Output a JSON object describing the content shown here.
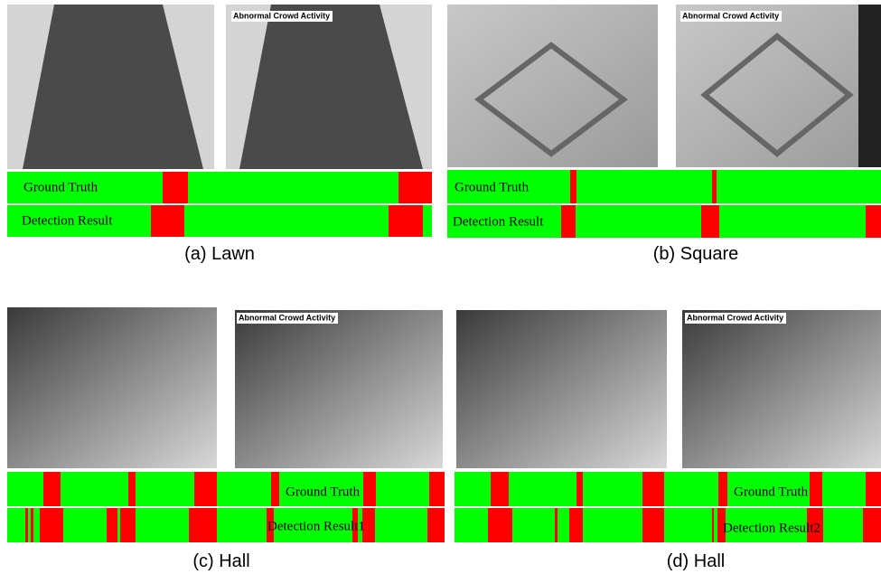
{
  "panels": [
    {
      "caption": "(a) Lawn",
      "overlay": "Abnormal Crowd Activity",
      "rows": [
        "Ground Truth",
        "Detection Result"
      ]
    },
    {
      "caption": "(b) Square",
      "overlay": "Abnormal Crowd Activity",
      "rows": [
        "Ground Truth",
        "Detection Result"
      ]
    },
    {
      "caption": "(c) Hall",
      "overlay": "Abnormal Crowd Activity",
      "rows": [
        "Ground Truth",
        "Detection Result1"
      ]
    },
    {
      "caption": "(d) Hall",
      "overlay": "Abnormal Crowd Activity",
      "rows": [
        "Ground Truth",
        "Detection Result2"
      ]
    }
  ]
}
